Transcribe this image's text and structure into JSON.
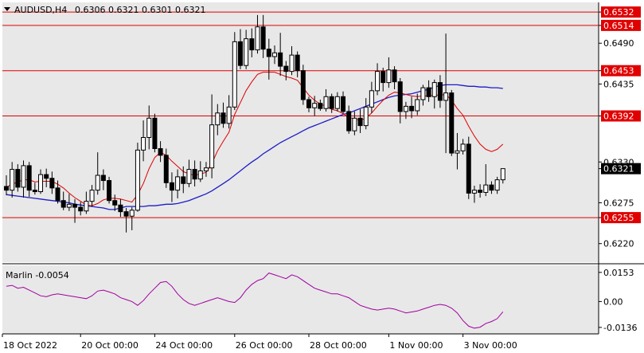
{
  "header": {
    "symbol_timeframe": "AUDUSD,H4",
    "ohlc": "0.6306 0.6321 0.6301 0.6321"
  },
  "indicator": {
    "label": "Marlin -0.0054"
  },
  "colors": {
    "background": "#ffffff",
    "plot_background": "#e8e8e8",
    "bull_candle": "#ffffff",
    "bear_candle": "#000000",
    "level_line": "#e00000",
    "ma_fast": "#e00000",
    "ma_slow": "#1c1cc8",
    "oscillator": "#a000a0",
    "price_badge": "#000000"
  },
  "chart_data": {
    "type": "candlestick",
    "symbol": "AUDUSD",
    "timeframe": "H4",
    "price_axis": {
      "ticks": [
        "0.6532",
        "0.6514",
        "0.6490",
        "0.6453",
        "0.6435",
        "0.6392",
        "0.6330",
        "0.6321",
        "0.6275",
        "0.6255",
        "0.6220"
      ],
      "range": [
        0.6195,
        0.6545
      ]
    },
    "time_axis": {
      "labels": [
        "18 Oct 2022",
        "20 Oct 00:00",
        "24 Oct 00:00",
        "26 Oct 00:00",
        "28 Oct 00:00",
        "1 Nov 00:00",
        "3 Nov 00:00"
      ]
    },
    "levels": [
      0.6532,
      0.6514,
      0.6453,
      0.6392,
      0.6255
    ],
    "last_price": "0.6321",
    "candles": [
      [
        0.6297,
        0.6292,
        0.6312,
        0.6285
      ],
      [
        0.6292,
        0.632,
        0.633,
        0.6282
      ],
      [
        0.632,
        0.6296,
        0.6327,
        0.629
      ],
      [
        0.6296,
        0.6325,
        0.6332,
        0.6282
      ],
      [
        0.6325,
        0.6292,
        0.633,
        0.6283
      ],
      [
        0.6292,
        0.629,
        0.6302,
        0.6286
      ],
      [
        0.629,
        0.6313,
        0.632,
        0.6287
      ],
      [
        0.6313,
        0.6308,
        0.6321,
        0.6296
      ],
      [
        0.6308,
        0.6295,
        0.6317,
        0.6287
      ],
      [
        0.6295,
        0.6278,
        0.6305,
        0.6274
      ],
      [
        0.6278,
        0.6269,
        0.629,
        0.6265
      ],
      [
        0.6269,
        0.6273,
        0.6287,
        0.6264
      ],
      [
        0.6273,
        0.6269,
        0.628,
        0.6248
      ],
      [
        0.6269,
        0.6264,
        0.6276,
        0.6258
      ],
      [
        0.6264,
        0.6277,
        0.629,
        0.626
      ],
      [
        0.6277,
        0.6292,
        0.6299,
        0.627
      ],
      [
        0.6292,
        0.6312,
        0.6343,
        0.6286
      ],
      [
        0.6312,
        0.6305,
        0.632,
        0.6292
      ],
      [
        0.6305,
        0.6278,
        0.631,
        0.6274
      ],
      [
        0.6278,
        0.6272,
        0.6286,
        0.6264
      ],
      [
        0.6272,
        0.6263,
        0.628,
        0.6256
      ],
      [
        0.6263,
        0.6257,
        0.6268,
        0.6235
      ],
      [
        0.6257,
        0.6265,
        0.6269,
        0.6238
      ],
      [
        0.6265,
        0.6346,
        0.6356,
        0.6263
      ],
      [
        0.6346,
        0.6363,
        0.6386,
        0.6331
      ],
      [
        0.6363,
        0.6389,
        0.6406,
        0.6347
      ],
      [
        0.6389,
        0.6348,
        0.6395,
        0.6343
      ],
      [
        0.6348,
        0.6339,
        0.6358,
        0.633
      ],
      [
        0.6339,
        0.6302,
        0.6348,
        0.6295
      ],
      [
        0.6302,
        0.6292,
        0.6316,
        0.6276
      ],
      [
        0.6292,
        0.631,
        0.632,
        0.6281
      ],
      [
        0.631,
        0.6301,
        0.6324,
        0.6288
      ],
      [
        0.6301,
        0.632,
        0.6333,
        0.6296
      ],
      [
        0.632,
        0.6307,
        0.6332,
        0.6297
      ],
      [
        0.6307,
        0.6318,
        0.6331,
        0.6303
      ],
      [
        0.6318,
        0.6322,
        0.633,
        0.631
      ],
      [
        0.6322,
        0.638,
        0.6421,
        0.6308
      ],
      [
        0.638,
        0.6396,
        0.6408,
        0.6366
      ],
      [
        0.6396,
        0.6382,
        0.641,
        0.6376
      ],
      [
        0.6382,
        0.6404,
        0.642,
        0.6375
      ],
      [
        0.6404,
        0.6492,
        0.6505,
        0.64
      ],
      [
        0.6492,
        0.646,
        0.6509,
        0.6455
      ],
      [
        0.646,
        0.6496,
        0.6508,
        0.6455
      ],
      [
        0.6496,
        0.6481,
        0.651,
        0.6471
      ],
      [
        0.6481,
        0.6512,
        0.6528,
        0.6476
      ],
      [
        0.6512,
        0.6482,
        0.6528,
        0.647
      ],
      [
        0.6482,
        0.6472,
        0.6496,
        0.6441
      ],
      [
        0.6472,
        0.6477,
        0.6487,
        0.6462
      ],
      [
        0.6477,
        0.6459,
        0.6504,
        0.6446
      ],
      [
        0.6459,
        0.6452,
        0.6466,
        0.644
      ],
      [
        0.6452,
        0.6474,
        0.6486,
        0.6447
      ],
      [
        0.6474,
        0.6453,
        0.6479,
        0.6444
      ],
      [
        0.6453,
        0.6414,
        0.6461,
        0.6407
      ],
      [
        0.6414,
        0.6403,
        0.6418,
        0.6397
      ],
      [
        0.6403,
        0.6409,
        0.6419,
        0.6392
      ],
      [
        0.6409,
        0.6402,
        0.6414,
        0.6399
      ],
      [
        0.6402,
        0.6418,
        0.6428,
        0.6398
      ],
      [
        0.6418,
        0.6402,
        0.6422,
        0.6396
      ],
      [
        0.6402,
        0.6418,
        0.6424,
        0.6398
      ],
      [
        0.6418,
        0.6398,
        0.6425,
        0.6395
      ],
      [
        0.6398,
        0.6372,
        0.6406,
        0.6368
      ],
      [
        0.6372,
        0.6389,
        0.6398,
        0.6366
      ],
      [
        0.6389,
        0.6379,
        0.6401,
        0.6369
      ],
      [
        0.6379,
        0.6404,
        0.6416,
        0.6374
      ],
      [
        0.6404,
        0.6426,
        0.6438,
        0.6396
      ],
      [
        0.6426,
        0.6452,
        0.6463,
        0.642
      ],
      [
        0.6452,
        0.6437,
        0.6457,
        0.6425
      ],
      [
        0.6437,
        0.6454,
        0.6471,
        0.643
      ],
      [
        0.6454,
        0.6438,
        0.6459,
        0.6428
      ],
      [
        0.6438,
        0.6398,
        0.6443,
        0.6382
      ],
      [
        0.6398,
        0.6405,
        0.6411,
        0.6388
      ],
      [
        0.6405,
        0.6399,
        0.6418,
        0.6389
      ],
      [
        0.6399,
        0.6414,
        0.6422,
        0.6393
      ],
      [
        0.6414,
        0.643,
        0.6434,
        0.6406
      ],
      [
        0.643,
        0.6418,
        0.644,
        0.6411
      ],
      [
        0.6418,
        0.6437,
        0.6441,
        0.6402
      ],
      [
        0.6437,
        0.6413,
        0.6447,
        0.6403
      ],
      [
        0.6413,
        0.6423,
        0.6503,
        0.6342
      ],
      [
        0.6423,
        0.6342,
        0.6427,
        0.6338
      ],
      [
        0.6342,
        0.6345,
        0.6369,
        0.632
      ],
      [
        0.6345,
        0.6354,
        0.6361,
        0.634
      ],
      [
        0.6354,
        0.6288,
        0.6364,
        0.628
      ],
      [
        0.6288,
        0.6292,
        0.6298,
        0.6275
      ],
      [
        0.6292,
        0.6289,
        0.63,
        0.6282
      ],
      [
        0.6289,
        0.6299,
        0.6327,
        0.6284
      ],
      [
        0.6299,
        0.6292,
        0.6304,
        0.6287
      ],
      [
        0.6292,
        0.6306,
        0.631,
        0.6287
      ],
      [
        0.6306,
        0.6321,
        0.6321,
        0.6301
      ]
    ],
    "ma_fast": [
      0.6296,
      0.63,
      0.6303,
      0.6306,
      0.6306,
      0.6303,
      0.6304,
      0.6304,
      0.6304,
      0.63,
      0.6295,
      0.6288,
      0.6282,
      0.6277,
      0.6272,
      0.6271,
      0.6274,
      0.6279,
      0.6281,
      0.6281,
      0.628,
      0.6278,
      0.6276,
      0.6286,
      0.6301,
      0.6321,
      0.6336,
      0.6343,
      0.6339,
      0.6331,
      0.6324,
      0.6317,
      0.6314,
      0.6312,
      0.6314,
      0.6316,
      0.6328,
      0.6345,
      0.6358,
      0.637,
      0.6394,
      0.641,
      0.6426,
      0.6438,
      0.6448,
      0.6451,
      0.6451,
      0.6451,
      0.6448,
      0.6445,
      0.6443,
      0.644,
      0.643,
      0.642,
      0.6413,
      0.6408,
      0.6405,
      0.6401,
      0.6399,
      0.6395,
      0.639,
      0.6388,
      0.6386,
      0.6389,
      0.6396,
      0.6405,
      0.6413,
      0.642,
      0.6424,
      0.6423,
      0.6421,
      0.6419,
      0.6418,
      0.6419,
      0.6419,
      0.642,
      0.642,
      0.6421,
      0.6413,
      0.6402,
      0.6393,
      0.6378,
      0.6365,
      0.6354,
      0.6347,
      0.6344,
      0.6347,
      0.6354
    ],
    "ma_slow": [
      0.6286,
      0.6285,
      0.6284,
      0.6283,
      0.6282,
      0.6281,
      0.628,
      0.6279,
      0.6278,
      0.6277,
      0.6276,
      0.6275,
      0.6273,
      0.6272,
      0.6271,
      0.627,
      0.6269,
      0.6268,
      0.6266,
      0.6266,
      0.6268,
      0.627,
      0.627,
      0.627,
      0.627,
      0.6271,
      0.6271,
      0.6272,
      0.6273,
      0.6273,
      0.6274,
      0.6276,
      0.6278,
      0.6281,
      0.6284,
      0.6287,
      0.6291,
      0.6296,
      0.6301,
      0.6306,
      0.6312,
      0.6318,
      0.6324,
      0.633,
      0.6335,
      0.6341,
      0.6346,
      0.6351,
      0.6356,
      0.636,
      0.6364,
      0.6368,
      0.6372,
      0.6376,
      0.6379,
      0.6382,
      0.6385,
      0.6388,
      0.6391,
      0.6394,
      0.6396,
      0.6399,
      0.6402,
      0.6405,
      0.6408,
      0.6411,
      0.6414,
      0.6417,
      0.6419,
      0.642,
      0.6421,
      0.6422,
      0.6424,
      0.6426,
      0.6428,
      0.6431,
      0.6433,
      0.6434,
      0.6434,
      0.6434,
      0.6433,
      0.6432,
      0.6432,
      0.6431,
      0.6431,
      0.643,
      0.643,
      0.6429
    ],
    "oscillator": {
      "name": "Marlin",
      "last": "-0.0054",
      "ticks": [
        "0.0153",
        "0.00",
        "-0.0136"
      ],
      "range": [
        -0.017,
        0.019
      ],
      "values": [
        0.008,
        0.0085,
        0.007,
        0.0075,
        0.006,
        0.0045,
        0.003,
        0.0025,
        0.0035,
        0.004,
        0.0035,
        0.003,
        0.0025,
        0.002,
        0.0015,
        0.003,
        0.0055,
        0.006,
        0.005,
        0.004,
        0.002,
        0.001,
        0.0,
        -0.002,
        0.0005,
        0.004,
        0.007,
        0.01,
        0.0105,
        0.008,
        0.004,
        0.001,
        -0.001,
        -0.002,
        -0.001,
        0.0,
        0.001,
        0.002,
        0.001,
        0.0,
        -0.0005,
        0.002,
        0.006,
        0.009,
        0.011,
        0.012,
        0.015,
        0.014,
        0.013,
        0.012,
        0.014,
        0.013,
        0.011,
        0.009,
        0.007,
        0.006,
        0.005,
        0.004,
        0.004,
        0.003,
        0.002,
        0.0,
        -0.002,
        -0.003,
        -0.004,
        -0.0045,
        -0.004,
        -0.0035,
        -0.004,
        -0.005,
        -0.006,
        -0.0055,
        -0.005,
        -0.004,
        -0.003,
        -0.002,
        -0.0015,
        -0.002,
        -0.0035,
        -0.006,
        -0.01,
        -0.013,
        -0.014,
        -0.0135,
        -0.0115,
        -0.0105,
        -0.009,
        -0.0054
      ]
    }
  }
}
